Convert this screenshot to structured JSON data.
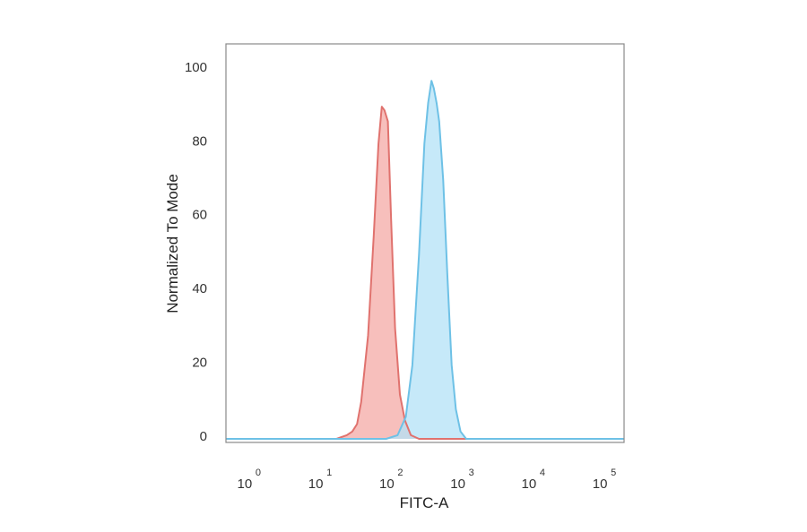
{
  "chart_data": {
    "type": "area",
    "xlabel": "FITC-A",
    "ylabel": "Normalized To Mode",
    "x_scale": "log",
    "xlim": [
      0.5,
      200000
    ],
    "ylim": [
      0,
      107
    ],
    "x_ticks": [
      {
        "base": "10",
        "exp": "0",
        "value": 1
      },
      {
        "base": "10",
        "exp": "1",
        "value": 10
      },
      {
        "base": "10",
        "exp": "2",
        "value": 100
      },
      {
        "base": "10",
        "exp": "3",
        "value": 1000
      },
      {
        "base": "10",
        "exp": "4",
        "value": 10000
      },
      {
        "base": "10",
        "exp": "5",
        "value": 100000
      }
    ],
    "y_ticks": [
      "0",
      "20",
      "40",
      "60",
      "80",
      "100"
    ],
    "grid": false,
    "legend": "none",
    "series": [
      {
        "color": "#e0726e",
        "fill": "#f4aaa6",
        "points": [
          [
            0.5,
            0
          ],
          [
            18,
            0
          ],
          [
            25,
            1
          ],
          [
            30,
            2
          ],
          [
            35,
            4
          ],
          [
            40,
            10
          ],
          [
            50,
            28
          ],
          [
            60,
            55
          ],
          [
            70,
            80
          ],
          [
            78,
            90
          ],
          [
            85,
            89
          ],
          [
            95,
            86
          ],
          [
            105,
            60
          ],
          [
            120,
            30
          ],
          [
            140,
            12
          ],
          [
            165,
            5
          ],
          [
            200,
            1
          ],
          [
            260,
            0
          ],
          [
            200000,
            0
          ]
        ]
      },
      {
        "color": "#6ec1e6",
        "fill": "#b3e1f7",
        "points": [
          [
            0.5,
            0
          ],
          [
            90,
            0
          ],
          [
            130,
            1
          ],
          [
            170,
            6
          ],
          [
            210,
            20
          ],
          [
            260,
            50
          ],
          [
            310,
            80
          ],
          [
            350,
            91
          ],
          [
            390,
            97
          ],
          [
            420,
            95
          ],
          [
            460,
            91
          ],
          [
            500,
            86
          ],
          [
            570,
            70
          ],
          [
            650,
            45
          ],
          [
            750,
            20
          ],
          [
            860,
            8
          ],
          [
            1000,
            2
          ],
          [
            1200,
            0
          ],
          [
            200000,
            0
          ]
        ]
      }
    ]
  }
}
